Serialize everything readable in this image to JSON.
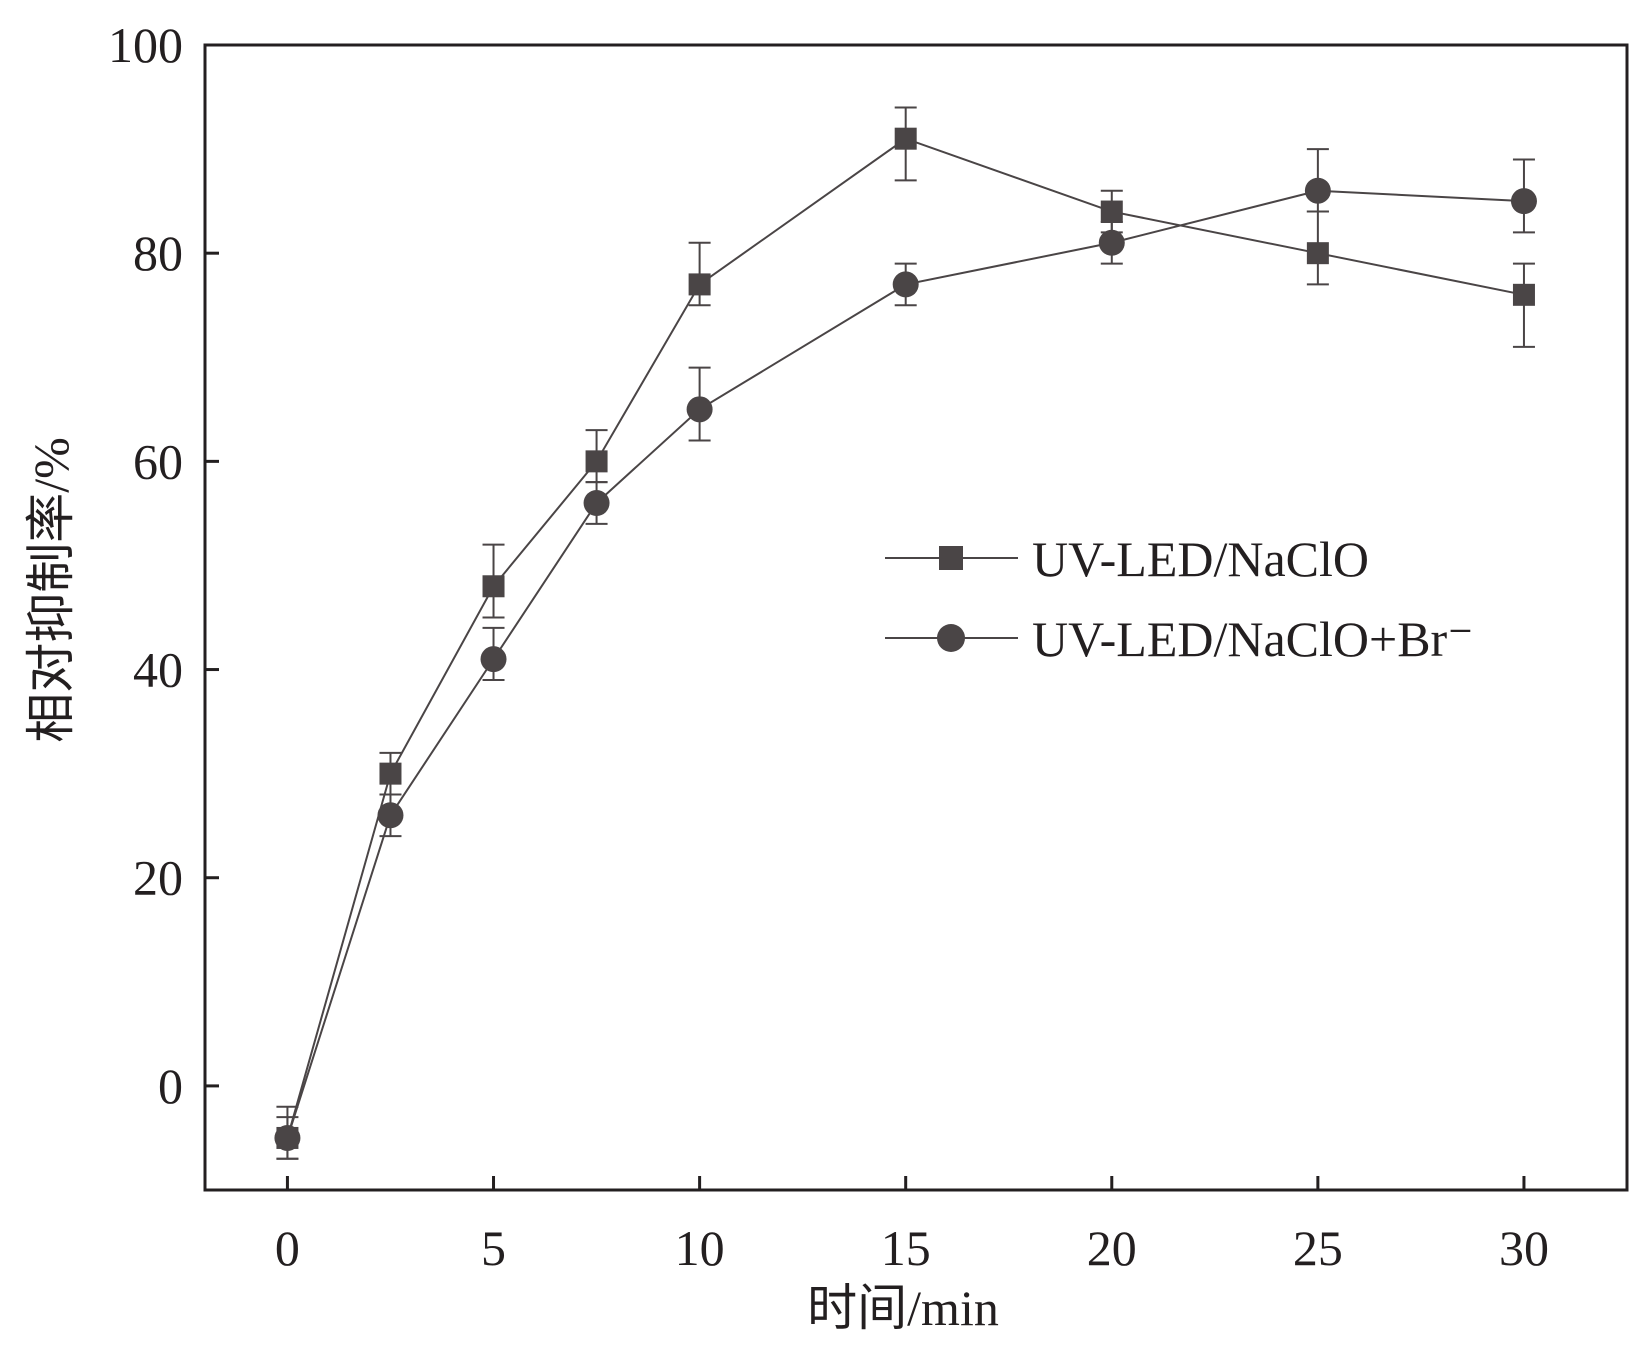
{
  "chart_data": {
    "type": "line",
    "title": "",
    "xlabel": "时间/min",
    "ylabel": "相对抑制率/%",
    "xlim": [
      -2,
      32.5
    ],
    "ylim": [
      -10,
      100
    ],
    "xticks": [
      0,
      5,
      10,
      15,
      20,
      25,
      30
    ],
    "yticks": [
      0,
      20,
      40,
      60,
      80,
      100
    ],
    "grid": false,
    "legend_position": "center-right",
    "color": "#4a4546",
    "series": [
      {
        "name": "UV-LED/NaClO",
        "marker": "square",
        "x": [
          0,
          2.5,
          5,
          7.5,
          10,
          15,
          20,
          25,
          30
        ],
        "y": [
          -5,
          30,
          48,
          60,
          77,
          91,
          84,
          80,
          76
        ],
        "err_low": [
          2,
          2,
          3,
          2,
          2,
          4,
          2,
          3,
          5
        ],
        "err_high": [
          3,
          2,
          4,
          3,
          4,
          3,
          2,
          4,
          3
        ]
      },
      {
        "name": "UV-LED/NaClO+Br⁻",
        "marker": "circle",
        "x": [
          0,
          2.5,
          5,
          7.5,
          10,
          15,
          20,
          25,
          30
        ],
        "y": [
          -5,
          26,
          41,
          56,
          65,
          77,
          81,
          86,
          85
        ],
        "err_low": [
          2,
          2,
          2,
          2,
          3,
          2,
          2,
          2,
          3
        ],
        "err_high": [
          2,
          2,
          3,
          2,
          4,
          2,
          2,
          4,
          4
        ]
      }
    ]
  }
}
